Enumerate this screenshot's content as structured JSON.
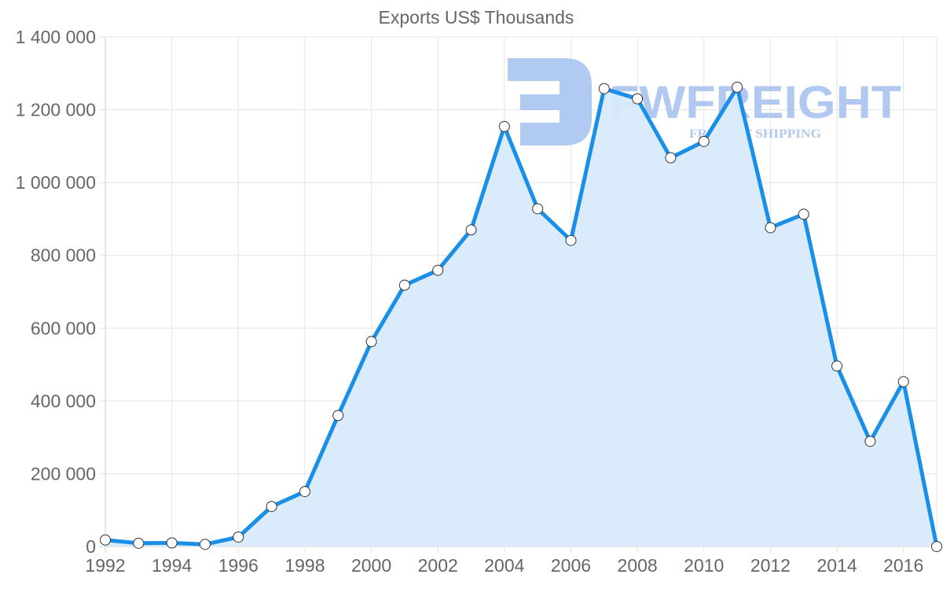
{
  "chart_data": {
    "type": "line",
    "title": "Exports US$ Thousands",
    "xlabel": "",
    "ylabel": "",
    "x": [
      1992,
      1993,
      1994,
      1995,
      1996,
      1997,
      1998,
      1999,
      2000,
      2001,
      2002,
      2003,
      2004,
      2005,
      2006,
      2007,
      2008,
      2009,
      2010,
      2011,
      2012,
      2013,
      2014,
      2015,
      2016,
      2017
    ],
    "series": [
      {
        "name": "Exports US$ Thousands",
        "values": [
          18000,
          9000,
          10000,
          6000,
          26000,
          110000,
          151000,
          360000,
          563000,
          718000,
          759000,
          870000,
          1154000,
          928000,
          841000,
          1258000,
          1230000,
          1068000,
          1113000,
          1262000,
          876000,
          913000,
          496000,
          289000,
          453000,
          0
        ]
      }
    ],
    "x_tick_labels": [
      "1992",
      "1994",
      "1996",
      "1998",
      "2000",
      "2002",
      "2004",
      "2006",
      "2008",
      "2010",
      "2012",
      "2014",
      "2016"
    ],
    "y_tick_labels": [
      "0",
      "200 000",
      "400 000",
      "600 000",
      "800 000",
      "1 000 000",
      "1 200 000",
      "1 400 000"
    ],
    "ylim": [
      0,
      1400000
    ],
    "xlim": [
      1992,
      2017
    ],
    "grid": true,
    "filled_area": true,
    "legend": null
  },
  "colors": {
    "line": "#1a8fe8",
    "fill": "#d8ebfb",
    "point_fill": "#ffffff",
    "point_stroke": "#333333",
    "watermark": "#a9c4ef",
    "text": "#666666"
  },
  "watermark": {
    "brand": "FWFREIGHT",
    "tagline": "FREIGHT SHIPPING"
  }
}
